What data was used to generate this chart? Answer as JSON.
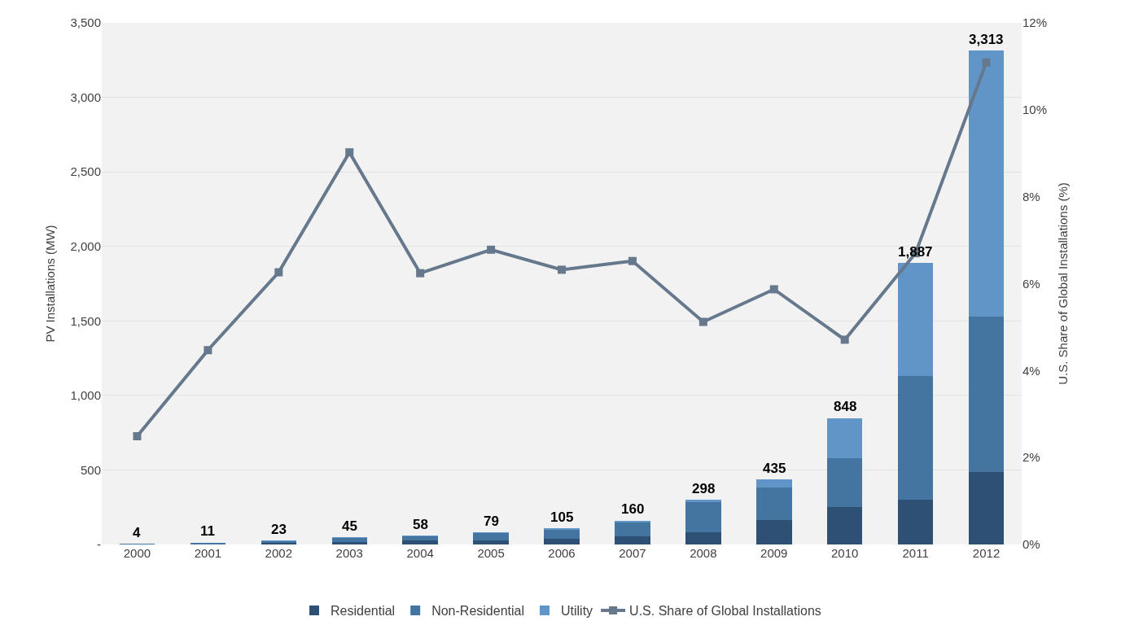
{
  "chart_data": {
    "type": "bar",
    "stacked": true,
    "ylabel": "PV Installations (MW)",
    "y2label": "U.S. Share of Global Installations (%)",
    "categories": [
      "2000",
      "2001",
      "2002",
      "2003",
      "2004",
      "2005",
      "2006",
      "2007",
      "2008",
      "2009",
      "2010",
      "2011",
      "2012"
    ],
    "series": [
      {
        "name": "Residential",
        "color": "#2e5075",
        "values": [
          2,
          5,
          12,
          19,
          27,
          28,
          40,
          57,
          81,
          166,
          252,
          300,
          488
        ]
      },
      {
        "name": "Non-Residential",
        "color": "#4474a0",
        "values": [
          2,
          6,
          10,
          25,
          30,
          50,
          63,
          95,
          204,
          215,
          328,
          833,
          1042
        ]
      },
      {
        "name": "Utility",
        "color": "#6195c8",
        "values": [
          0,
          0,
          1,
          1,
          1,
          1,
          2,
          8,
          13,
          54,
          268,
          754,
          1783
        ]
      },
      {
        "name": "U.S. Share of Global Installations",
        "type": "line",
        "axis": "y2",
        "color": "#66788c",
        "marker": "square",
        "values": [
          2.49,
          4.47,
          6.26,
          9.02,
          6.24,
          6.78,
          6.32,
          6.52,
          5.12,
          5.87,
          4.71,
          6.7,
          11.09
        ]
      }
    ],
    "totals": [
      "4",
      "11",
      "23",
      "45",
      "58",
      "79",
      "105",
      "160",
      "298",
      "435",
      "848",
      "1,887",
      "3,313"
    ],
    "ylim": [
      0,
      3500
    ],
    "yticks": [
      {
        "value": 0,
        "label": "-"
      },
      {
        "value": 500,
        "label": "500"
      },
      {
        "value": 1000,
        "label": "1,000"
      },
      {
        "value": 1500,
        "label": "1,500"
      },
      {
        "value": 2000,
        "label": "2,000"
      },
      {
        "value": 2500,
        "label": "2,500"
      },
      {
        "value": 3000,
        "label": "3,000"
      },
      {
        "value": 3500,
        "label": "3,500"
      }
    ],
    "y2lim": [
      0,
      12
    ],
    "y2ticks": [
      {
        "value": 0,
        "label": "0%"
      },
      {
        "value": 2,
        "label": "2%"
      },
      {
        "value": 4,
        "label": "4%"
      },
      {
        "value": 6,
        "label": "6%"
      },
      {
        "value": 8,
        "label": "8%"
      },
      {
        "value": 10,
        "label": "10%"
      },
      {
        "value": 12,
        "label": "12%"
      }
    ],
    "grid": "y",
    "legend": "bottom"
  }
}
